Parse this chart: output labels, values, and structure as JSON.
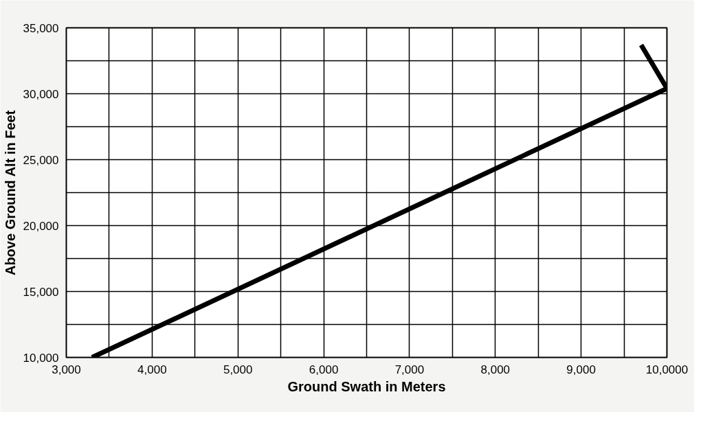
{
  "chart_data": {
    "type": "line",
    "xlabel": "Ground Swath in Meters",
    "ylabel": "Above Ground Alt in Feet",
    "x": [
      3300,
      10000,
      9700
    ],
    "series": [
      {
        "color": "#000000",
        "values": [
          10000,
          30400,
          33700
        ]
      }
    ],
    "xlim": [
      3000,
      10000
    ],
    "ylim": [
      10000,
      35000
    ],
    "xticks": [
      {
        "value": 3000,
        "label": "3,000"
      },
      {
        "value": 3500,
        "label": null
      },
      {
        "value": 4000,
        "label": "4,000"
      },
      {
        "value": 4500,
        "label": null
      },
      {
        "value": 5000,
        "label": "5,000"
      },
      {
        "value": 5500,
        "label": null
      },
      {
        "value": 6000,
        "label": "6,000"
      },
      {
        "value": 6500,
        "label": null
      },
      {
        "value": 7000,
        "label": "7,000"
      },
      {
        "value": 7500,
        "label": null
      },
      {
        "value": 8000,
        "label": "8,000"
      },
      {
        "value": 8500,
        "label": null
      },
      {
        "value": 9000,
        "label": "9,000"
      },
      {
        "value": 9500,
        "label": null
      },
      {
        "value": 10000,
        "label": "10,0000"
      }
    ],
    "yticks": [
      {
        "value": 10000,
        "label": "10,000"
      },
      {
        "value": 12500,
        "label": null
      },
      {
        "value": 15000,
        "label": "15,000"
      },
      {
        "value": 17500,
        "label": null
      },
      {
        "value": 20000,
        "label": "20,000"
      },
      {
        "value": 22500,
        "label": null
      },
      {
        "value": 25000,
        "label": "25,000"
      },
      {
        "value": 27500,
        "label": null
      },
      {
        "value": 30000,
        "label": "30,000"
      },
      {
        "value": 32500,
        "label": null
      },
      {
        "value": 35000,
        "label": "35,000"
      }
    ],
    "grid": true,
    "marker": "none",
    "line_style": "solid"
  }
}
